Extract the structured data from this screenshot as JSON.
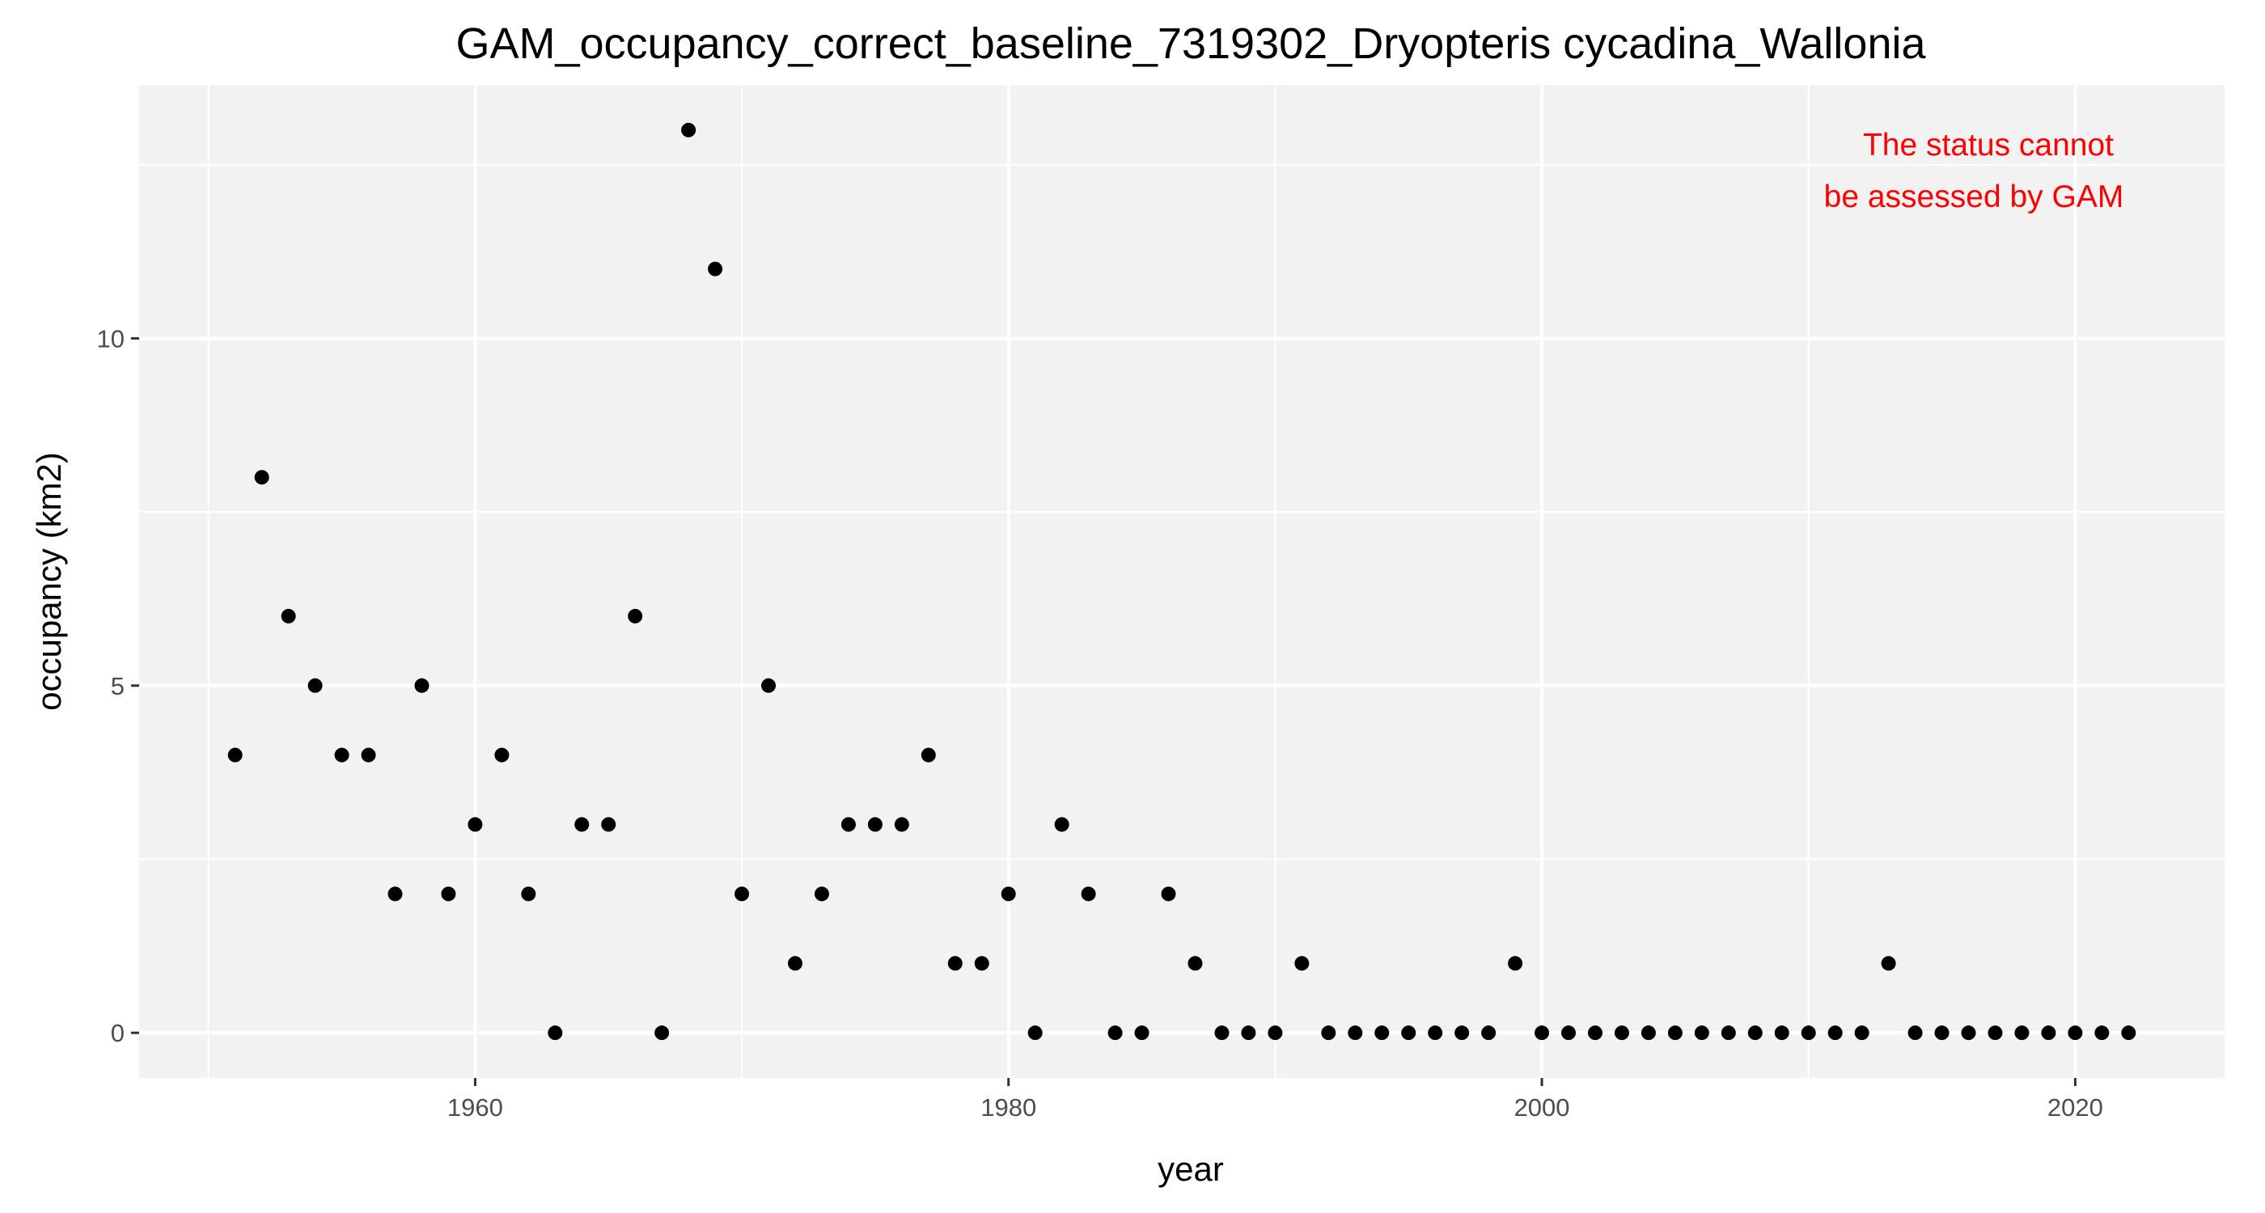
{
  "chart_data": {
    "type": "scatter",
    "title": "GAM_occupancy_correct_baseline_7319302_Dryopteris cycadina_Wallonia",
    "xlabel": "year",
    "ylabel": "occupancy (km2)",
    "xlim": [
      1947.4,
      2025.6
    ],
    "ylim": [
      -0.65,
      13.65
    ],
    "x_ticks": [
      1960,
      1980,
      2000,
      2020
    ],
    "x_tick_labels": [
      "1960",
      "1980",
      "2000",
      "2020"
    ],
    "y_ticks": [
      0,
      5,
      10
    ],
    "y_tick_labels": [
      "0",
      "5",
      "10"
    ],
    "x_minor_ticks": [
      1950,
      1970,
      1990,
      2010
    ],
    "y_minor_ticks": [
      2.5,
      7.5,
      12.5
    ],
    "grid": true,
    "panel_background": "#f2f2f2",
    "grid_color": "#ffffff",
    "point_color": "#000000",
    "annotation": {
      "lines": [
        "The status cannot",
        "be assessed by GAM"
      ],
      "color": "#ff0000",
      "position": "top-right"
    },
    "series": [
      {
        "x": [
          1951,
          1952,
          1953,
          1954,
          1955,
          1956,
          1957,
          1958,
          1959,
          1960,
          1961,
          1962,
          1963,
          1964,
          1965,
          1966,
          1967,
          1968,
          1969,
          1970,
          1971,
          1972,
          1973,
          1974,
          1975,
          1976,
          1977,
          1978,
          1979,
          1980,
          1981,
          1982,
          1983,
          1984,
          1985,
          1986,
          1987,
          1988,
          1989,
          1990,
          1991,
          1992,
          1993,
          1994,
          1995,
          1996,
          1997,
          1998,
          1999,
          2000,
          2001,
          2002,
          2003,
          2004,
          2005,
          2006,
          2007,
          2008,
          2009,
          2010,
          2011,
          2012,
          2013,
          2014,
          2015,
          2016,
          2017,
          2018,
          2019,
          2020,
          2021,
          2022
        ],
        "y": [
          4,
          8,
          6,
          5,
          4,
          4,
          2,
          5,
          2,
          3,
          4,
          2,
          0,
          3,
          3,
          6,
          0,
          13,
          11,
          2,
          5,
          1,
          2,
          3,
          3,
          3,
          4,
          1,
          1,
          2,
          0,
          3,
          2,
          0,
          0,
          2,
          1,
          0,
          0,
          0,
          1,
          0,
          0,
          0,
          0,
          0,
          0,
          0,
          1,
          0,
          0,
          0,
          0,
          0,
          0,
          0,
          0,
          0,
          0,
          0,
          0,
          0,
          1,
          0,
          0,
          0,
          0,
          0,
          0,
          0,
          0,
          0
        ]
      }
    ]
  }
}
